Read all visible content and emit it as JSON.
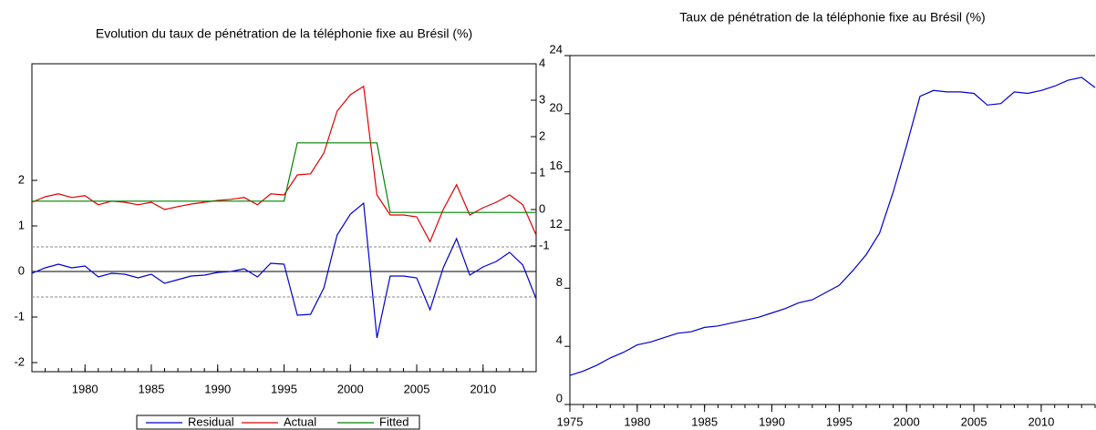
{
  "chart_data": [
    {
      "type": "line",
      "title": "Evolution du taux de pénétration de la téléphonie fixe au Brésil (%)",
      "x": [
        1976,
        1977,
        1978,
        1979,
        1980,
        1981,
        1982,
        1983,
        1984,
        1985,
        1986,
        1987,
        1988,
        1989,
        1990,
        1991,
        1992,
        1993,
        1994,
        1995,
        1996,
        1997,
        1998,
        1999,
        2000,
        2001,
        2002,
        2003,
        2004,
        2005,
        2006,
        2007,
        2008,
        2009,
        2010,
        2011,
        2012,
        2013,
        2014
      ],
      "xlim": [
        1976,
        2014
      ],
      "xticks": [
        1980,
        1985,
        1990,
        1995,
        2000,
        2005,
        2010
      ],
      "ylim": [
        -2.2,
        4.56
      ],
      "yticks": [
        -2,
        -1,
        0,
        1,
        2
      ],
      "y2lim": [
        -4.45,
        4
      ],
      "y2ticks": [
        -1,
        0,
        1,
        2,
        3,
        4
      ],
      "reference_lines": [
        {
          "value": 0,
          "style": "solid"
        },
        {
          "value": 0.54,
          "style": "dashed"
        },
        {
          "value": -0.56,
          "style": "dashed"
        }
      ],
      "legend": "bottom",
      "series": [
        {
          "name": "Residual",
          "color": "#0000cc",
          "values": [
            -0.04,
            0.08,
            0.16,
            0.08,
            0.12,
            -0.12,
            -0.04,
            -0.06,
            -0.14,
            -0.06,
            -0.26,
            -0.18,
            -0.1,
            -0.08,
            -0.02,
            0,
            0.06,
            -0.12,
            0.18,
            0.16,
            -0.96,
            -0.94,
            -0.36,
            0.8,
            1.26,
            1.5,
            -1.46,
            -0.1,
            -0.1,
            -0.14,
            -0.84,
            0.08,
            0.72,
            -0.08,
            0.1,
            0.22,
            0.42,
            0.14,
            -0.6
          ]
        },
        {
          "name": "Actual",
          "color": "#e00000",
          "axis": "y2",
          "values": [
            0.2,
            0.35,
            0.43,
            0.33,
            0.38,
            0.13,
            0.23,
            0.2,
            0.13,
            0.2,
            0,
            0.08,
            0.15,
            0.2,
            0.25,
            0.28,
            0.33,
            0.13,
            0.43,
            0.4,
            0.95,
            0.98,
            1.55,
            2.7,
            3.15,
            3.38,
            0.4,
            -0.15,
            -0.15,
            -0.2,
            -0.88,
            0,
            0.68,
            -0.15,
            0.05,
            0.2,
            0.4,
            0.13,
            -0.7
          ]
        },
        {
          "name": "Fitted",
          "color": "#008000",
          "axis": "y2",
          "values": [
            0.23,
            0.23,
            0.23,
            0.23,
            0.23,
            0.23,
            0.23,
            0.23,
            0.23,
            0.23,
            0.23,
            0.23,
            0.23,
            0.23,
            0.23,
            0.23,
            0.23,
            0.23,
            0.23,
            0.23,
            1.83,
            1.83,
            1.83,
            1.83,
            1.83,
            1.83,
            1.83,
            -0.08,
            -0.08,
            -0.08,
            -0.08,
            -0.08,
            -0.08,
            -0.08,
            -0.08,
            -0.08,
            -0.08,
            -0.08,
            -0.08
          ]
        }
      ]
    },
    {
      "type": "line",
      "title": "Taux de pénétration de la téléphonie fixe au Brésil (%)",
      "x": [
        1975,
        1976,
        1977,
        1978,
        1979,
        1980,
        1981,
        1982,
        1983,
        1984,
        1985,
        1986,
        1987,
        1988,
        1989,
        1990,
        1991,
        1992,
        1993,
        1994,
        1995,
        1996,
        1997,
        1998,
        1999,
        2000,
        2001,
        2002,
        2003,
        2004,
        2005,
        2006,
        2007,
        2008,
        2009,
        2010,
        2011,
        2012,
        2013,
        2014
      ],
      "xlim": [
        1975,
        2014
      ],
      "xticks": [
        1975,
        1980,
        1985,
        1990,
        1995,
        2000,
        2005,
        2010
      ],
      "ylim": [
        0,
        24
      ],
      "yticks": [
        0,
        4,
        8,
        12,
        16,
        20,
        24
      ],
      "series": [
        {
          "color": "#0000cc",
          "values": [
            2.0,
            2.3,
            2.7,
            3.2,
            3.6,
            4.1,
            4.3,
            4.6,
            4.9,
            5.0,
            5.3,
            5.4,
            5.6,
            5.8,
            6.0,
            6.3,
            6.6,
            7.0,
            7.2,
            7.7,
            8.2,
            9.2,
            10.3,
            11.8,
            14.6,
            17.8,
            21.2,
            21.6,
            21.5,
            21.5,
            21.4,
            20.6,
            20.7,
            21.5,
            21.4,
            21.6,
            21.9,
            22.3,
            22.5,
            21.8
          ]
        }
      ]
    }
  ]
}
